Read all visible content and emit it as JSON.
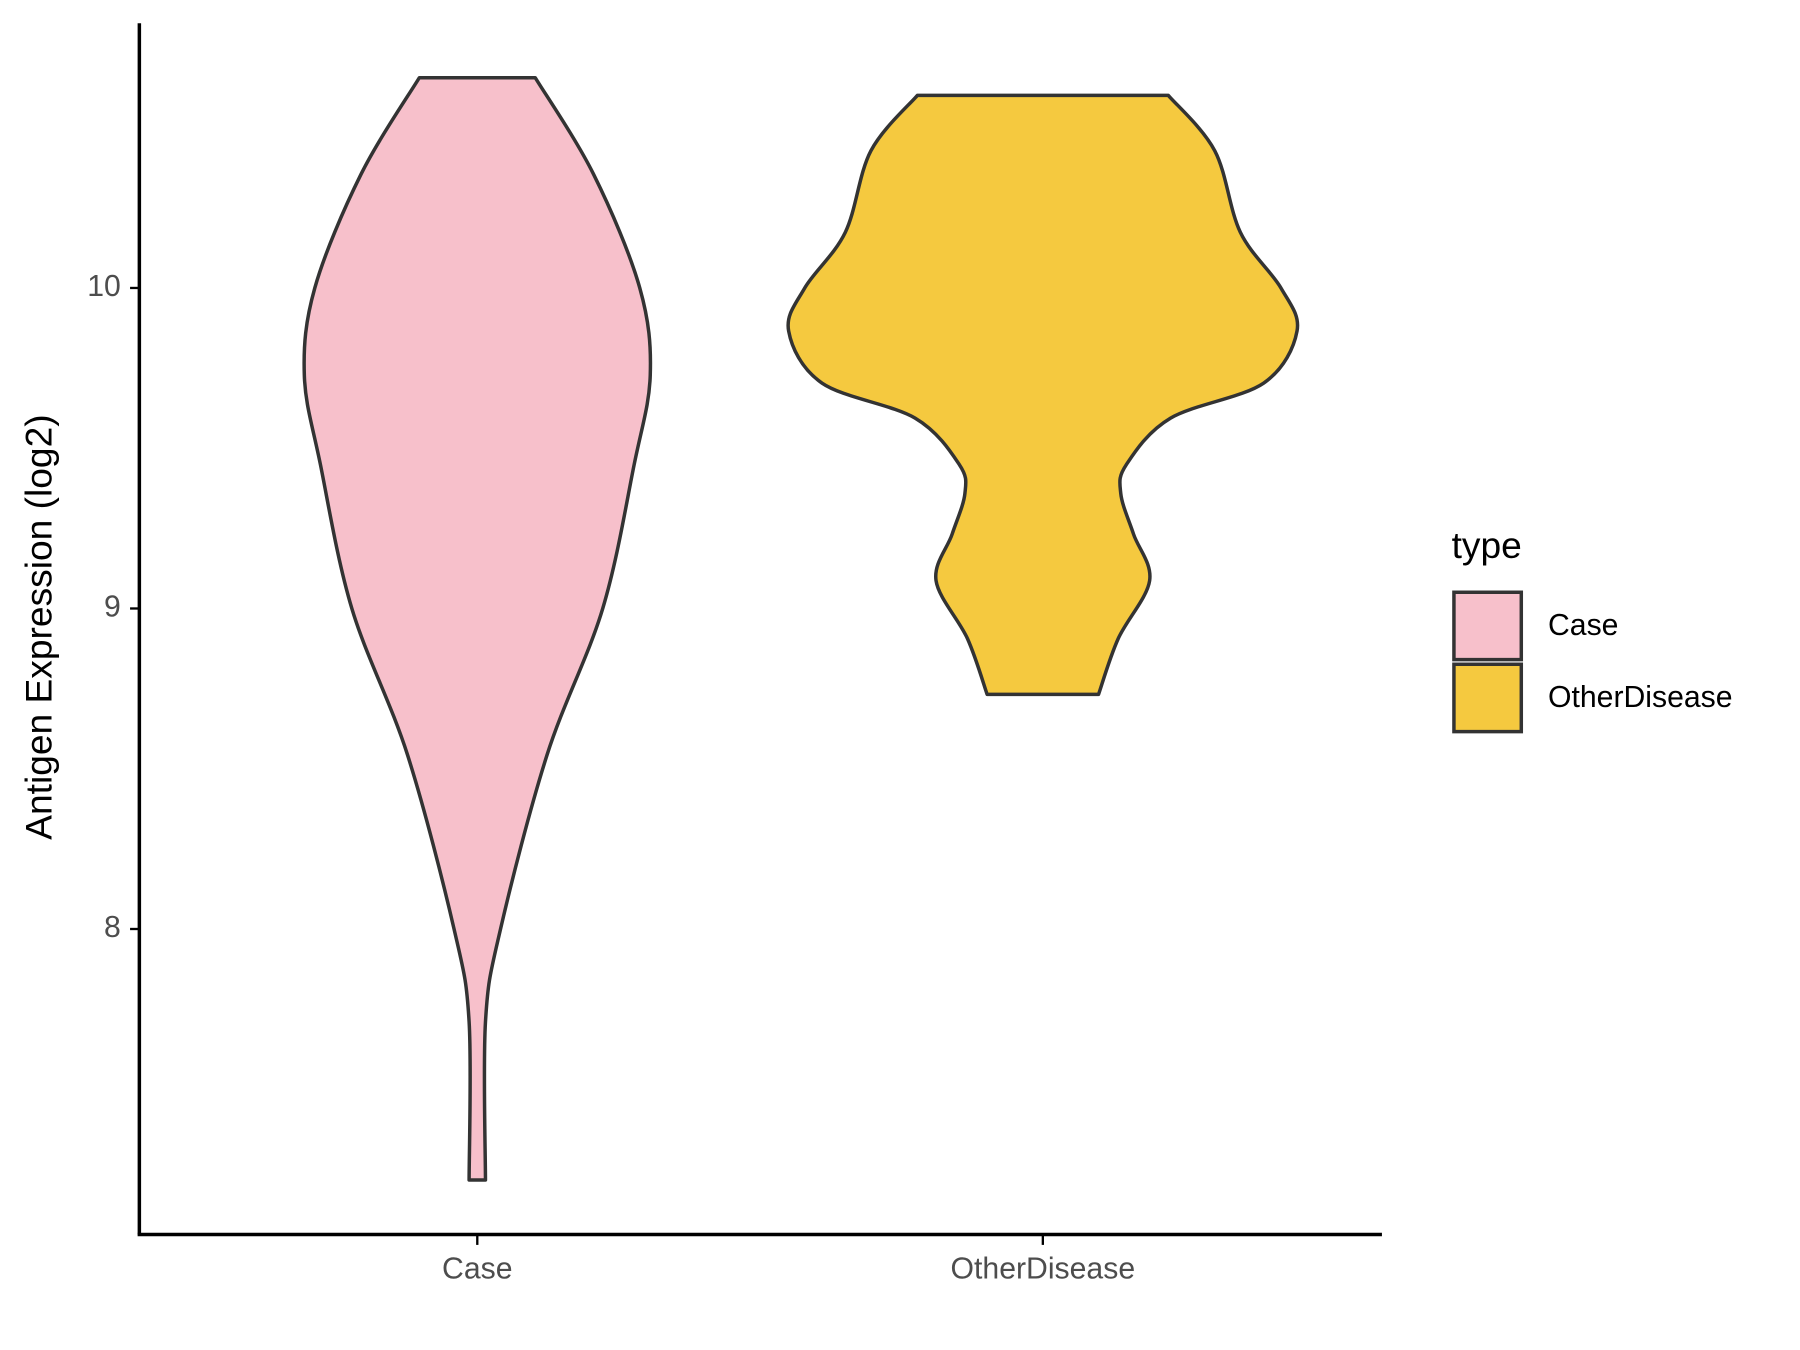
{
  "chart_data": {
    "type": "violin",
    "y_label": "Antigen Expression (log2)",
    "categories": [
      "Case",
      "OtherDisease"
    ],
    "ylim": [
      7.047,
      10.826
    ],
    "yticks": [
      8,
      9,
      10
    ],
    "legend_title": "type",
    "legend_position": "right",
    "series": [
      {
        "name": "Case",
        "color": "#f7c0cb",
        "y": [
          10.656,
          10.355,
          10,
          9.728,
          9.449,
          9,
          8.543,
          8,
          7.71,
          7.217
        ],
        "widths": [
          0.227,
          0.455,
          0.636,
          0.677,
          0.614,
          0.491,
          0.273,
          0.091,
          0.032,
          0.032
        ]
      },
      {
        "name": "OtherDisease",
        "color": "#f5c93f",
        "y": [
          10.601,
          10.428,
          10.174,
          10,
          9.866,
          9.703,
          9.594,
          9.449,
          9.359,
          9.232,
          9.087,
          8.906,
          8.732
        ],
        "widths": [
          0.491,
          0.673,
          0.773,
          0.932,
          0.995,
          0.864,
          0.5,
          0.327,
          0.305,
          0.355,
          0.418,
          0.295,
          0.218
        ]
      }
    ]
  }
}
